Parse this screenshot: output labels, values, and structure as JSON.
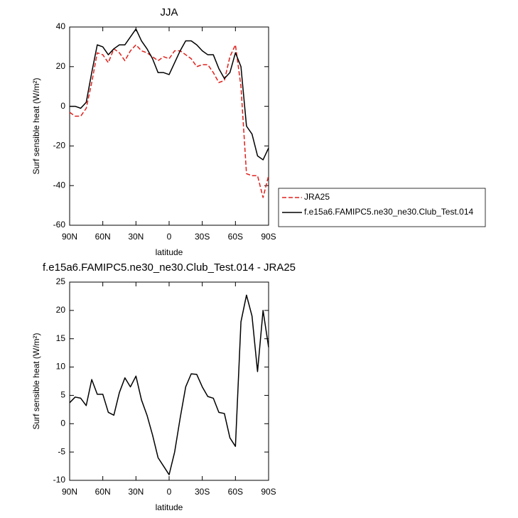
{
  "chart_data": [
    {
      "type": "line",
      "title": "JJA",
      "xlabel": "latitude",
      "ylabel": "Surf sensible heat (W/m²)",
      "x": [
        90,
        85,
        80,
        75,
        70,
        65,
        60,
        55,
        50,
        45,
        40,
        35,
        30,
        25,
        20,
        15,
        10,
        5,
        0,
        -5,
        -10,
        -15,
        -20,
        -25,
        -30,
        -35,
        -40,
        -45,
        -50,
        -55,
        -60,
        -65,
        -70,
        -75,
        -80,
        -85,
        -90
      ],
      "series": [
        {
          "name": "JRA25",
          "color": "#e0201b",
          "dash": "dashed",
          "values": [
            -3,
            -5,
            -5,
            -1,
            12,
            27,
            26,
            22,
            29,
            27,
            23,
            28,
            31,
            28,
            27,
            25,
            23,
            25,
            24,
            28,
            28,
            26,
            24,
            20,
            21,
            21,
            17,
            12,
            13,
            25,
            31,
            10,
            -34,
            -35,
            -35,
            -46,
            -35
          ]
        },
        {
          "name": "f.e15a6.FAMIPC5.ne30_ne30.Club_Test.014",
          "color": "#000000",
          "dash": "solid",
          "values": [
            0,
            0,
            -1,
            2,
            17,
            31,
            30,
            26,
            29,
            31,
            31,
            35,
            39,
            33,
            29,
            24,
            17,
            17,
            16,
            22,
            28,
            33,
            33,
            31,
            28,
            26,
            26,
            19,
            14,
            17,
            27,
            20,
            -10,
            -14,
            -25,
            -27,
            -21
          ]
        }
      ],
      "xlim": [
        90,
        -90
      ],
      "xticks": [
        {
          "value": 90,
          "label": "90N"
        },
        {
          "value": 60,
          "label": "60N"
        },
        {
          "value": 30,
          "label": "30N"
        },
        0,
        {
          "value": -30,
          "label": "30S"
        },
        {
          "value": -60,
          "label": "60S"
        },
        {
          "value": -90,
          "label": "90S"
        }
      ],
      "ylim": [
        -60,
        40
      ],
      "yticks": [
        -60,
        -40,
        -20,
        0,
        20,
        40
      ],
      "legend": "right"
    },
    {
      "type": "line",
      "title": "f.e15a6.FAMIPC5.ne30_ne30.Club_Test.014 - JRA25",
      "xlabel": "latitude",
      "ylabel": "Surf sensible heat (W/m²)",
      "x": [
        90,
        85,
        80,
        75,
        70,
        65,
        60,
        55,
        50,
        45,
        40,
        35,
        30,
        25,
        20,
        15,
        10,
        5,
        0,
        -5,
        -10,
        -15,
        -20,
        -25,
        -30,
        -35,
        -40,
        -45,
        -50,
        -55,
        -60,
        -65,
        -70,
        -75,
        -80,
        -85,
        -90
      ],
      "values": [
        3.7,
        4.7,
        4.5,
        3.2,
        7.8,
        5.2,
        5.2,
        2.0,
        1.5,
        5.5,
        8.1,
        6.5,
        8.4,
        4.2,
        1.5,
        -2,
        -6,
        -7.5,
        -9,
        -5,
        1,
        6.5,
        8.8,
        8.7,
        6.5,
        4.8,
        4.5,
        2.0,
        1.8,
        -2.5,
        -4,
        18,
        22.7,
        19,
        9.2,
        20,
        13.5
      ],
      "color": "#000000",
      "xlim": [
        90,
        -90
      ],
      "xticks": [
        {
          "value": 90,
          "label": "90N"
        },
        {
          "value": 60,
          "label": "60N"
        },
        {
          "value": 30,
          "label": "30N"
        },
        0,
        {
          "value": -30,
          "label": "30S"
        },
        {
          "value": -60,
          "label": "60S"
        },
        {
          "value": -90,
          "label": "90S"
        }
      ],
      "ylim": [
        -10,
        25
      ],
      "yticks": [
        -10,
        -5,
        0,
        5,
        10,
        15,
        20,
        25
      ]
    }
  ]
}
